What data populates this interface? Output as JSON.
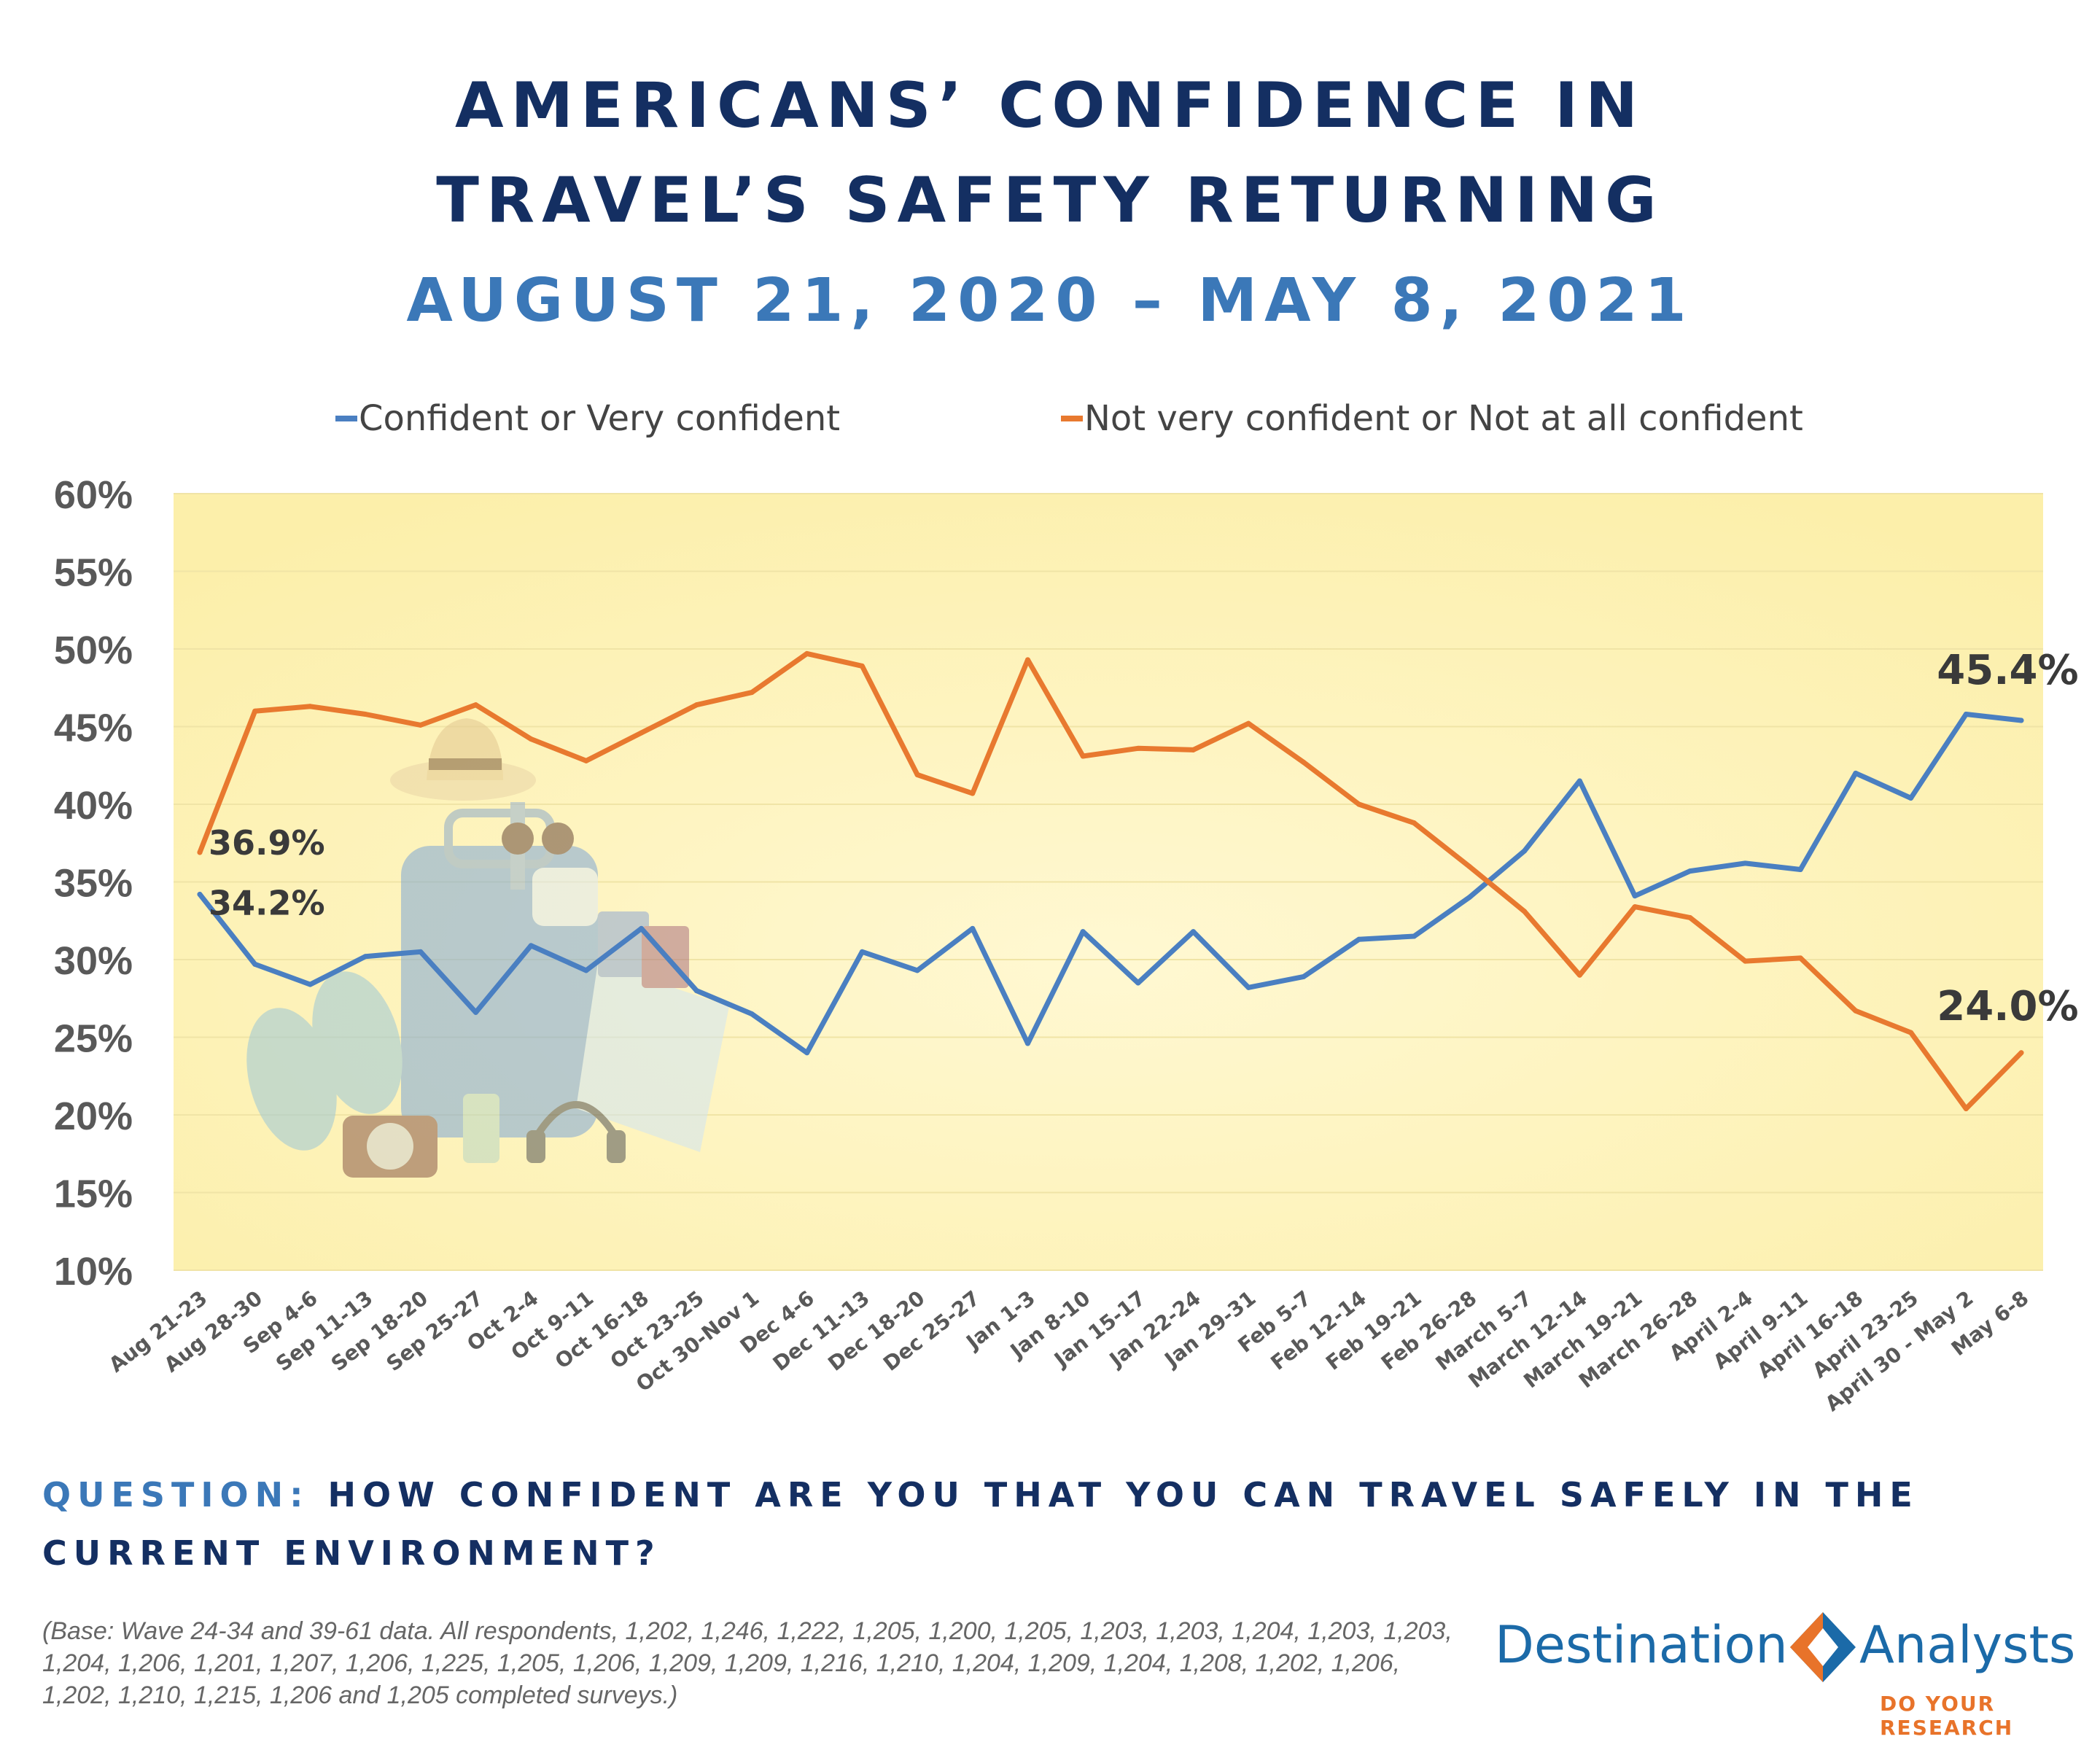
{
  "header": {
    "title_line1": "AMERICANS’ CONFIDENCE IN",
    "title_line2": "TRAVEL’S SAFETY RETURNING",
    "subtitle": "AUGUST 21, 2020 – MAY 8, 2021"
  },
  "chart_data": {
    "type": "line",
    "x": [
      "Aug 21-23",
      "Aug 28-30",
      "Sep 4-6",
      "Sep 11-13",
      "Sep 18-20",
      "Sep 25-27",
      "Oct 2-4",
      "Oct 9-11",
      "Oct 16-18",
      "Oct 23-25",
      "Oct 30-Nov 1",
      "Dec 4-6",
      "Dec 11-13",
      "Dec 18-20",
      "Dec 25-27",
      "Jan 1-3",
      "Jan 8-10",
      "Jan 15-17",
      "Jan 22-24",
      "Jan 29-31",
      "Feb 5-7",
      "Feb 12-14",
      "Feb 19-21",
      "Feb 26-28",
      "March 5-7",
      "March 12-14",
      "March 19-21",
      "March 26-28",
      "April 2-4",
      "April 9-11",
      "April 16-18",
      "April 23-25",
      "April 30 - May 2",
      "May 6-8"
    ],
    "series": [
      {
        "name": "Confident or Very confident",
        "color": "#4a7fc1",
        "values": [
          34.2,
          29.7,
          28.4,
          30.2,
          30.5,
          26.6,
          30.9,
          29.3,
          32.0,
          28.0,
          26.5,
          24.0,
          30.5,
          29.3,
          32.0,
          24.6,
          31.8,
          28.5,
          31.8,
          28.2,
          28.9,
          31.3,
          31.5,
          34.0,
          37.0,
          41.5,
          34.1,
          35.7,
          36.2,
          35.8,
          42.0,
          40.4,
          45.8,
          45.4
        ]
      },
      {
        "name": "Not very confident or Not at all confident",
        "color": "#e8792f",
        "values": [
          36.9,
          46.0,
          46.3,
          45.8,
          45.1,
          46.4,
          44.2,
          42.8,
          44.6,
          46.4,
          47.2,
          49.7,
          48.9,
          41.9,
          40.7,
          49.3,
          43.1,
          43.6,
          43.5,
          45.2,
          42.7,
          40.0,
          38.8,
          36.0,
          33.1,
          29.0,
          33.4,
          32.7,
          29.9,
          30.1,
          26.7,
          25.3,
          20.4,
          24.0
        ]
      }
    ],
    "ylim": [
      10,
      60
    ],
    "yticks": [
      "60%",
      "55%",
      "50%",
      "45%",
      "40%",
      "35%",
      "30%",
      "25%",
      "20%",
      "15%",
      "10%"
    ],
    "legend_position": "top",
    "grid": true,
    "annotations": [
      "36.9%",
      "34.2%",
      "45.4%",
      "24.0%"
    ],
    "plot_background": "#fdf4b8"
  },
  "question": {
    "label": "QUESTION:",
    "text": "HOW CONFIDENT ARE YOU THAT YOU CAN TRAVEL SAFELY IN THE CURRENT ENVIRONMENT?"
  },
  "base_note": "(Base: Wave 24-34 and 39-61 data. All respondents, 1,202, 1,246, 1,222, 1,205, 1,200, 1,205, 1,203, 1,203, 1,204, 1,203, 1,203, 1,204, 1,206, 1,201, 1,207, 1,206, 1,225, 1,205, 1,206, 1,209, 1,209, 1,216, 1,210, 1,204, 1,209, 1,204, 1,208, 1,202, 1,206, 1,202, 1,210, 1,215, 1,206 and 1,205 completed surveys.)",
  "logo": {
    "word_left": "Destination",
    "word_right": "Analysts",
    "tagline": "DO YOUR RESEARCH",
    "color_blue": "#1b6aa8",
    "color_orange": "#e8732a"
  }
}
